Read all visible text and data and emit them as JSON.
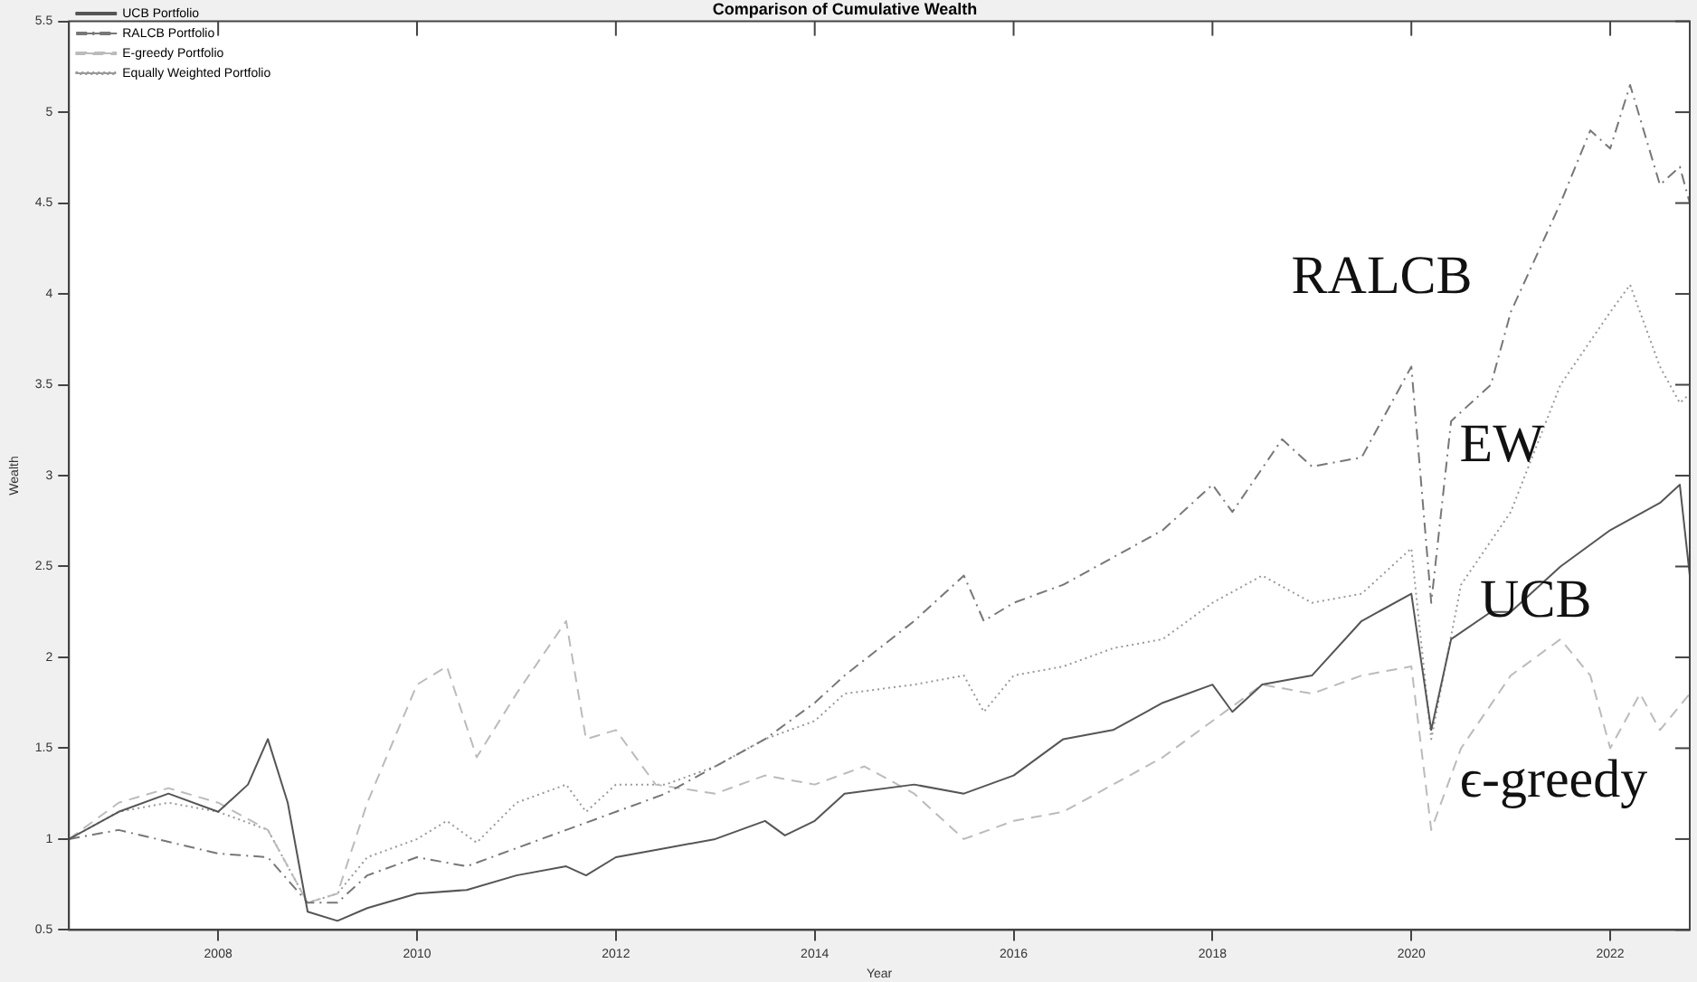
{
  "chart_data": {
    "type": "line",
    "title": "Comparison of Cumulative Wealth",
    "xlabel": "Year",
    "ylabel": "Wealth",
    "xlim": [
      2006.5,
      2022.8
    ],
    "xticks": [
      2008,
      2010,
      2012,
      2014,
      2016,
      2018,
      2020,
      2022
    ],
    "ylim": [
      0.5,
      5.5
    ],
    "yticks": [
      0.5,
      1,
      1.5,
      2,
      2.5,
      3,
      3.5,
      4,
      4.5,
      5,
      5.5
    ],
    "grid": false,
    "legend": "top left",
    "marker": "none",
    "annotations": [
      "RALCB",
      "EW",
      "UCB",
      "ϵ-greedy"
    ],
    "series": [
      {
        "name": "UCB Portfolio",
        "color": "#555555",
        "line_style": "solid",
        "x": [
          2006.5,
          2007,
          2007.5,
          2008,
          2008.3,
          2008.5,
          2008.7,
          2008.9,
          2009.2,
          2009.5,
          2010,
          2010.5,
          2011,
          2011.5,
          2011.7,
          2012,
          2012.5,
          2013,
          2013.5,
          2013.7,
          2014,
          2014.3,
          2015,
          2015.5,
          2016,
          2016.5,
          2017,
          2017.5,
          2018,
          2018.2,
          2018.5,
          2019,
          2019.5,
          2020,
          2020.2,
          2020.4,
          2020.8,
          2021,
          2021.5,
          2022,
          2022.5,
          2022.7,
          2022.8
        ],
        "values": [
          1.0,
          1.15,
          1.25,
          1.15,
          1.3,
          1.55,
          1.2,
          0.6,
          0.55,
          0.62,
          0.7,
          0.72,
          0.8,
          0.85,
          0.8,
          0.9,
          0.95,
          1.0,
          1.1,
          1.02,
          1.1,
          1.25,
          1.3,
          1.25,
          1.35,
          1.55,
          1.6,
          1.75,
          1.85,
          1.7,
          1.85,
          1.9,
          2.2,
          2.35,
          1.6,
          2.1,
          2.25,
          2.25,
          2.5,
          2.7,
          2.85,
          2.95,
          2.45
        ]
      },
      {
        "name": "RALCB Portfolio",
        "color": "#777777",
        "line_style": "dashdot",
        "x": [
          2006.5,
          2007,
          2008,
          2008.5,
          2008.9,
          2009.2,
          2009.5,
          2010,
          2010.5,
          2011,
          2011.5,
          2012,
          2012.5,
          2013,
          2013.5,
          2014,
          2014.3,
          2015,
          2015.5,
          2015.7,
          2016,
          2016.5,
          2017,
          2017.5,
          2018,
          2018.2,
          2018.7,
          2019,
          2019.5,
          2020,
          2020.2,
          2020.4,
          2020.8,
          2021,
          2021.5,
          2021.8,
          2022,
          2022.2,
          2022.5,
          2022.7,
          2022.8
        ],
        "values": [
          1.0,
          1.05,
          0.92,
          0.9,
          0.65,
          0.65,
          0.8,
          0.9,
          0.85,
          0.95,
          1.05,
          1.15,
          1.25,
          1.4,
          1.55,
          1.75,
          1.9,
          2.2,
          2.45,
          2.2,
          2.3,
          2.4,
          2.55,
          2.7,
          2.95,
          2.8,
          3.2,
          3.05,
          3.1,
          3.6,
          2.3,
          3.3,
          3.5,
          3.9,
          4.5,
          4.9,
          4.8,
          5.15,
          4.6,
          4.7,
          4.5
        ]
      },
      {
        "name": "E-greedy Portfolio",
        "color": "#bbbbbb",
        "line_style": "dashed",
        "x": [
          2006.5,
          2007,
          2007.5,
          2008,
          2008.5,
          2008.9,
          2009.2,
          2009.5,
          2010,
          2010.3,
          2010.6,
          2011,
          2011.5,
          2011.7,
          2012,
          2012.4,
          2013,
          2013.5,
          2014,
          2014.5,
          2015,
          2015.5,
          2016,
          2016.5,
          2017,
          2017.5,
          2018,
          2018.5,
          2019,
          2019.5,
          2020,
          2020.2,
          2020.5,
          2021,
          2021.5,
          2021.8,
          2022,
          2022.3,
          2022.5,
          2022.8
        ],
        "values": [
          1.0,
          1.2,
          1.28,
          1.2,
          1.05,
          0.65,
          0.7,
          1.2,
          1.85,
          1.95,
          1.45,
          1.8,
          2.2,
          1.55,
          1.6,
          1.3,
          1.25,
          1.35,
          1.3,
          1.4,
          1.25,
          1.0,
          1.1,
          1.15,
          1.3,
          1.45,
          1.65,
          1.85,
          1.8,
          1.9,
          1.95,
          1.05,
          1.5,
          1.9,
          2.1,
          1.9,
          1.5,
          1.8,
          1.6,
          1.8
        ]
      },
      {
        "name": "Equally Weighted Portfolio",
        "color": "#999999",
        "line_style": "dotted",
        "x": [
          2006.5,
          2007,
          2007.5,
          2008,
          2008.5,
          2008.9,
          2009.2,
          2009.5,
          2010,
          2010.3,
          2010.6,
          2011,
          2011.5,
          2011.7,
          2012,
          2012.5,
          2013,
          2013.5,
          2014,
          2014.3,
          2015,
          2015.5,
          2015.7,
          2016,
          2016.5,
          2017,
          2017.5,
          2018,
          2018.5,
          2019,
          2019.5,
          2020,
          2020.2,
          2020.5,
          2021,
          2021.5,
          2022,
          2022.2,
          2022.5,
          2022.7,
          2022.8
        ],
        "values": [
          1.0,
          1.15,
          1.2,
          1.15,
          1.05,
          0.65,
          0.7,
          0.9,
          1.0,
          1.1,
          0.98,
          1.2,
          1.3,
          1.15,
          1.3,
          1.3,
          1.4,
          1.55,
          1.65,
          1.8,
          1.85,
          1.9,
          1.7,
          1.9,
          1.95,
          2.05,
          2.1,
          2.3,
          2.45,
          2.3,
          2.35,
          2.6,
          1.55,
          2.4,
          2.8,
          3.5,
          3.9,
          4.05,
          3.6,
          3.4,
          3.45
        ]
      }
    ]
  }
}
